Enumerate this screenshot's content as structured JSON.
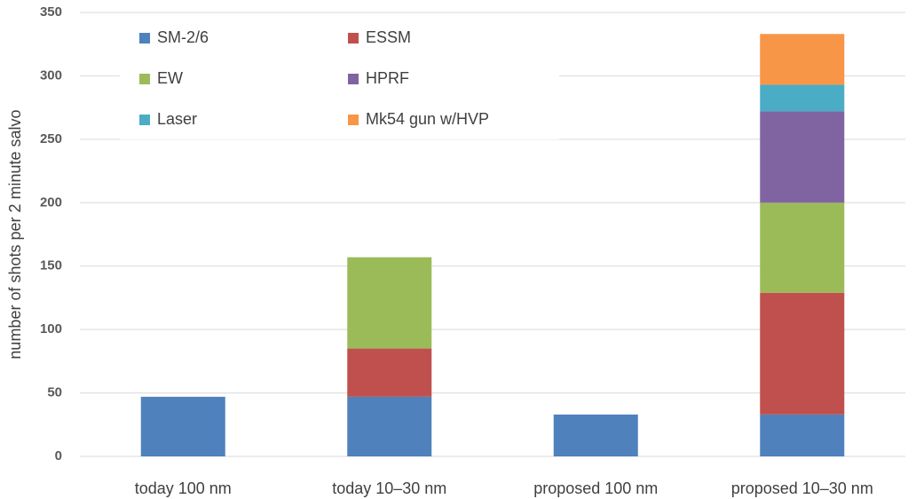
{
  "chart_data": {
    "type": "stacked_bar",
    "y_label": "number of shots per 2 minute salvo",
    "categories": [
      "today 100 nm",
      "today 10–30 nm",
      "proposed 100 nm",
      "proposed 10–30 nm"
    ],
    "series": [
      {
        "name": "SM-2/6",
        "color": "#4f81bd",
        "values": [
          47,
          47,
          33,
          33
        ]
      },
      {
        "name": "ESSM",
        "color": "#c0504d",
        "values": [
          null,
          38,
          null,
          96
        ]
      },
      {
        "name": "EW",
        "color": "#9bbb59",
        "values": [
          null,
          72,
          null,
          71
        ]
      },
      {
        "name": "HPRF",
        "color": "#8064a2",
        "values": [
          null,
          null,
          null,
          72
        ]
      },
      {
        "name": "Laser",
        "color": "#4bacc6",
        "values": [
          null,
          null,
          null,
          21
        ]
      },
      {
        "name": "Mk54 gun w/HVP",
        "color": "#f79646",
        "values": [
          null,
          null,
          null,
          40
        ]
      }
    ],
    "ylim": [
      0,
      350
    ],
    "yticks": [
      0,
      50,
      100,
      150,
      200,
      250,
      300,
      350
    ],
    "grid": true
  }
}
